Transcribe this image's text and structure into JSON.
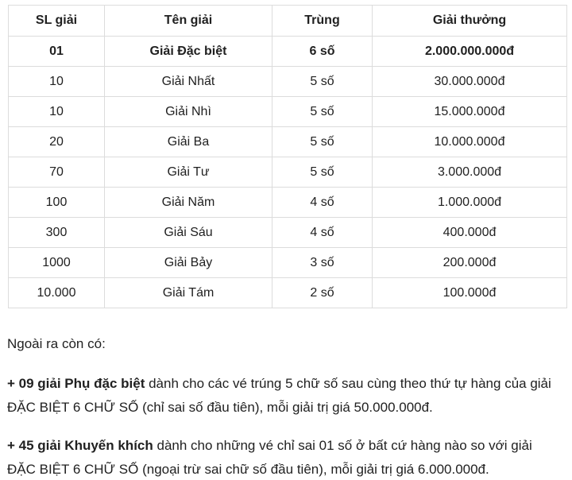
{
  "table": {
    "headers": [
      "SL giải",
      "Tên giải",
      "Trùng",
      "Giải thưởng"
    ],
    "rows": [
      {
        "sl": "01",
        "ten": "Giải Đặc biệt",
        "trung": "6 số",
        "thuong": "2.000.000.000đ"
      },
      {
        "sl": "10",
        "ten": "Giải Nhất",
        "trung": "5 số",
        "thuong": "30.000.000đ"
      },
      {
        "sl": "10",
        "ten": "Giải Nhì",
        "trung": "5 số",
        "thuong": "15.000.000đ"
      },
      {
        "sl": "20",
        "ten": "Giải Ba",
        "trung": "5 số",
        "thuong": "10.000.000đ"
      },
      {
        "sl": "70",
        "ten": "Giải Tư",
        "trung": "5 số",
        "thuong": "3.000.000đ"
      },
      {
        "sl": "100",
        "ten": "Giải Năm",
        "trung": "4 số",
        "thuong": "1.000.000đ"
      },
      {
        "sl": "300",
        "ten": "Giải Sáu",
        "trung": "4 số",
        "thuong": "400.000đ"
      },
      {
        "sl": "1000",
        "ten": "Giải Bảy",
        "trung": "3 số",
        "thuong": "200.000đ"
      },
      {
        "sl": "10.000",
        "ten": "Giải Tám",
        "trung": "2 số",
        "thuong": "100.000đ"
      }
    ]
  },
  "notes": {
    "intro": "Ngoài ra còn có:",
    "items": [
      {
        "lead": "+ 09 giải Phụ đặc biệt",
        "rest": " dành cho các vé trúng 5 chữ số sau cùng theo thứ tự hàng của giải ĐẶC BIỆT 6 CHỮ SỐ (chỉ sai số đầu tiên), mỗi giải trị giá 50.000.000đ."
      },
      {
        "lead": "+ 45 giải Khuyến khích",
        "rest": " dành cho những vé chỉ sai 01 số ở bất cứ hàng nào so với giải ĐẶC BIỆT 6 CHỮ SỐ (ngoại trừ sai chữ số đầu tiên), mỗi giải trị giá 6.000.000đ."
      }
    ]
  },
  "colors": {
    "text": "#212121",
    "border": "#dcdcdc",
    "background": "#ffffff"
  }
}
